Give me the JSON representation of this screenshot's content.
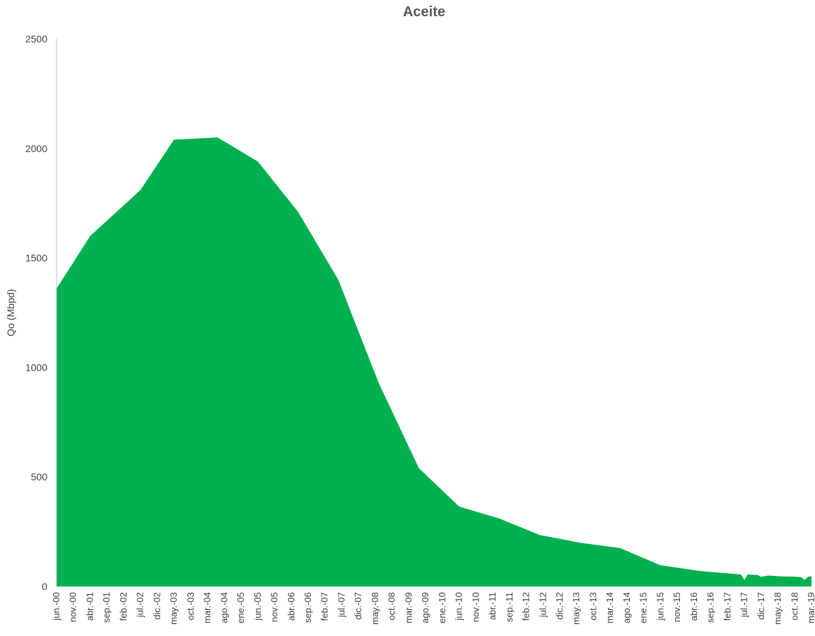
{
  "chart_data": {
    "type": "area",
    "title": "Aceite",
    "ylabel": "Qo (Mbpd)",
    "xlabel": "",
    "ylim": [
      0,
      2500
    ],
    "yticks": [
      0,
      500,
      1000,
      1500,
      2000,
      2500
    ],
    "grid": false,
    "fill_color": "#00B050",
    "x_tick_labels": [
      "jun.-00",
      "nov.-00",
      "abr.-01",
      "sep.-01",
      "feb.-02",
      "jul.-02",
      "dic.-02",
      "may.-03",
      "oct.-03",
      "mar.-04",
      "ago.-04",
      "ene.-05",
      "jun.-05",
      "nov.-05",
      "abr.-06",
      "sep.-06",
      "feb.-07",
      "jul.-07",
      "dic.-07",
      "may.-08",
      "oct.-08",
      "mar.-09",
      "ago.-09",
      "ene.-10",
      "jun.-10",
      "nov.-10",
      "abr.-11",
      "sep.-11",
      "feb.-12",
      "jul.-12",
      "dic.-12",
      "may.-13",
      "oct.-13",
      "mar.-14",
      "ago.-14",
      "ene.-15",
      "jun.-15",
      "nov.-15",
      "abr.-16",
      "sep.-16",
      "feb.-17",
      "jul.-17",
      "dic.-17",
      "may.-18",
      "oct.-18",
      "mar.-19"
    ],
    "series": [
      {
        "values": [
          {
            "x": "jun.-00",
            "y": 1360
          },
          {
            "x": "abr.-01",
            "y": 1600
          },
          {
            "x": "jul.-02",
            "y": 1810
          },
          {
            "x": "may.-03",
            "y": 2040
          },
          {
            "x": "jun.-04",
            "y": 2050
          },
          {
            "x": "jun.-05",
            "y": 1940
          },
          {
            "x": "jun.-06",
            "y": 1710
          },
          {
            "x": "jun.-07",
            "y": 1400
          },
          {
            "x": "jun.-08",
            "y": 930
          },
          {
            "x": "jun.-09",
            "y": 540
          },
          {
            "x": "jun.-10",
            "y": 365
          },
          {
            "x": "jun.-11",
            "y": 310
          },
          {
            "x": "jun.-12",
            "y": 235
          },
          {
            "x": "jun.-13",
            "y": 200
          },
          {
            "x": "jun.-14",
            "y": 175
          },
          {
            "x": "jun.-15",
            "y": 97
          },
          {
            "x": "jun.-16",
            "y": 70
          },
          {
            "x": "jun.-17",
            "y": 55
          },
          {
            "x": "jul.-17",
            "y": 30
          },
          {
            "x": "ago.-17",
            "y": 55
          },
          {
            "x": "nov.-17",
            "y": 52
          },
          {
            "x": "dic.-17",
            "y": 44
          },
          {
            "x": "feb.-18",
            "y": 50
          },
          {
            "x": "jun.-18",
            "y": 46
          },
          {
            "x": "oct.-18",
            "y": 45
          },
          {
            "x": "dic.-18",
            "y": 42
          },
          {
            "x": "ene.-19",
            "y": 30
          },
          {
            "x": "feb.-19",
            "y": 45
          },
          {
            "x": "mar.-19",
            "y": 46
          }
        ]
      }
    ]
  }
}
